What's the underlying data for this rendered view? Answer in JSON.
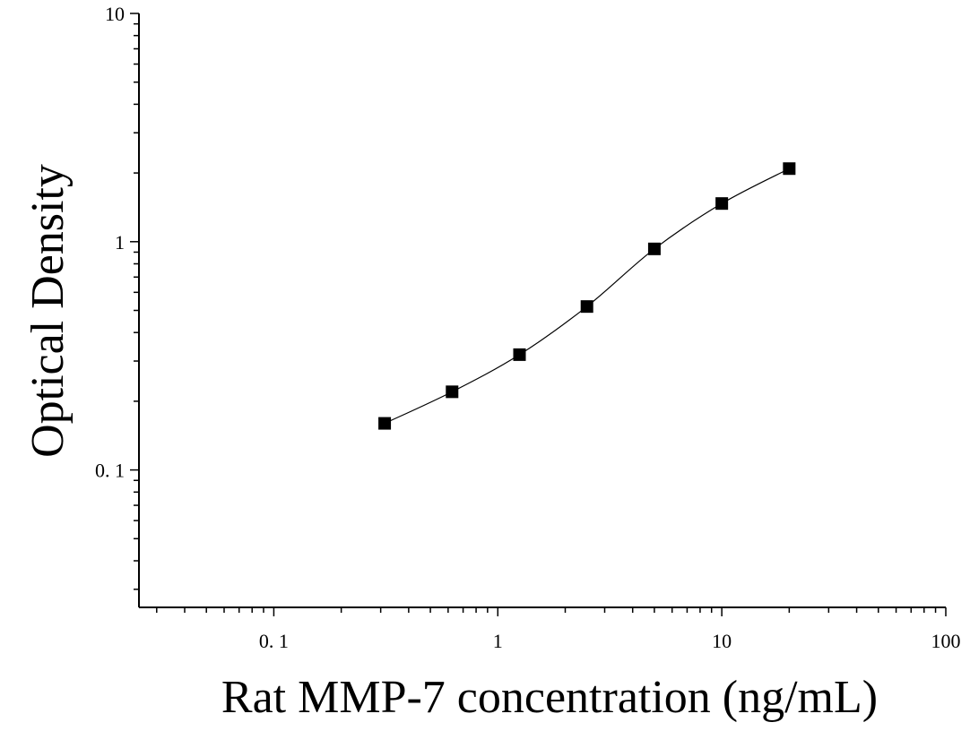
{
  "chart_data": {
    "type": "scatter",
    "title": "",
    "xlabel": "Rat MMP-7 concentration (ng/mL)",
    "ylabel": "Optical Density",
    "xscale": "log",
    "yscale": "log",
    "xlim": [
      0.025,
      100
    ],
    "ylim": [
      0.025,
      10
    ],
    "x_ticks": [
      {
        "value": 0.1,
        "label": "0. 1"
      },
      {
        "value": 1,
        "label": "1"
      },
      {
        "value": 10,
        "label": "10"
      },
      {
        "value": 100,
        "label": "100"
      }
    ],
    "y_ticks": [
      {
        "value": 0.1,
        "label": "0. 1"
      },
      {
        "value": 1,
        "label": "1"
      },
      {
        "value": 10,
        "label": "10"
      }
    ],
    "grid": false,
    "legend": "none",
    "marker_color": "#000000",
    "curve_color": "#000000",
    "series": [
      {
        "x": [
          0.3125,
          0.625,
          1.25,
          2.5,
          5,
          10,
          20
        ],
        "y": [
          0.16,
          0.22,
          0.32,
          0.52,
          0.93,
          1.47,
          2.09
        ]
      }
    ]
  }
}
